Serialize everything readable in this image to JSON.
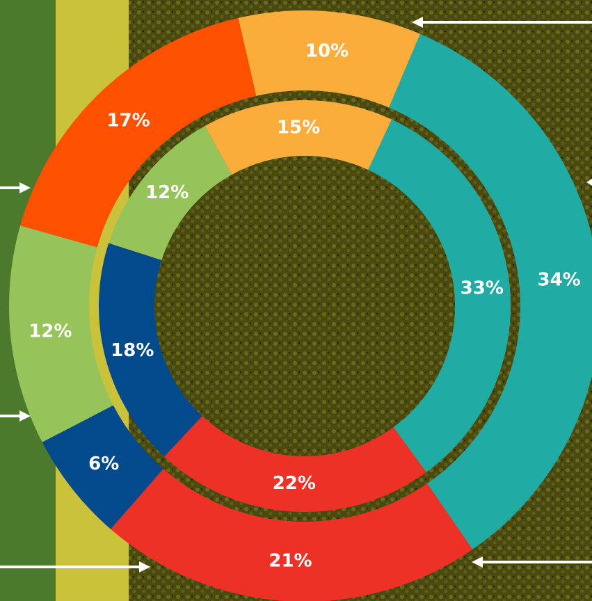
{
  "chart_data": [
    {
      "type": "doughnut",
      "values": [
        10,
        34,
        21,
        6,
        12,
        17
      ],
      "value_labels": [
        "10%",
        "34%",
        "21%",
        "6%",
        "12%",
        "17%"
      ],
      "colors": [
        "#fbad3c",
        "#21aba5",
        "#ee3127",
        "#034a8c",
        "#97c45a",
        "#fd5001"
      ]
    },
    {
      "type": "doughnut",
      "values": [
        15,
        33,
        22,
        18,
        12
      ],
      "value_labels": [
        "15%",
        "33%",
        "22%",
        "18%",
        "12%"
      ],
      "colors": [
        "#fbad3c",
        "#21aba5",
        "#ee3127",
        "#034a8c",
        "#97c45a"
      ]
    }
  ]
}
